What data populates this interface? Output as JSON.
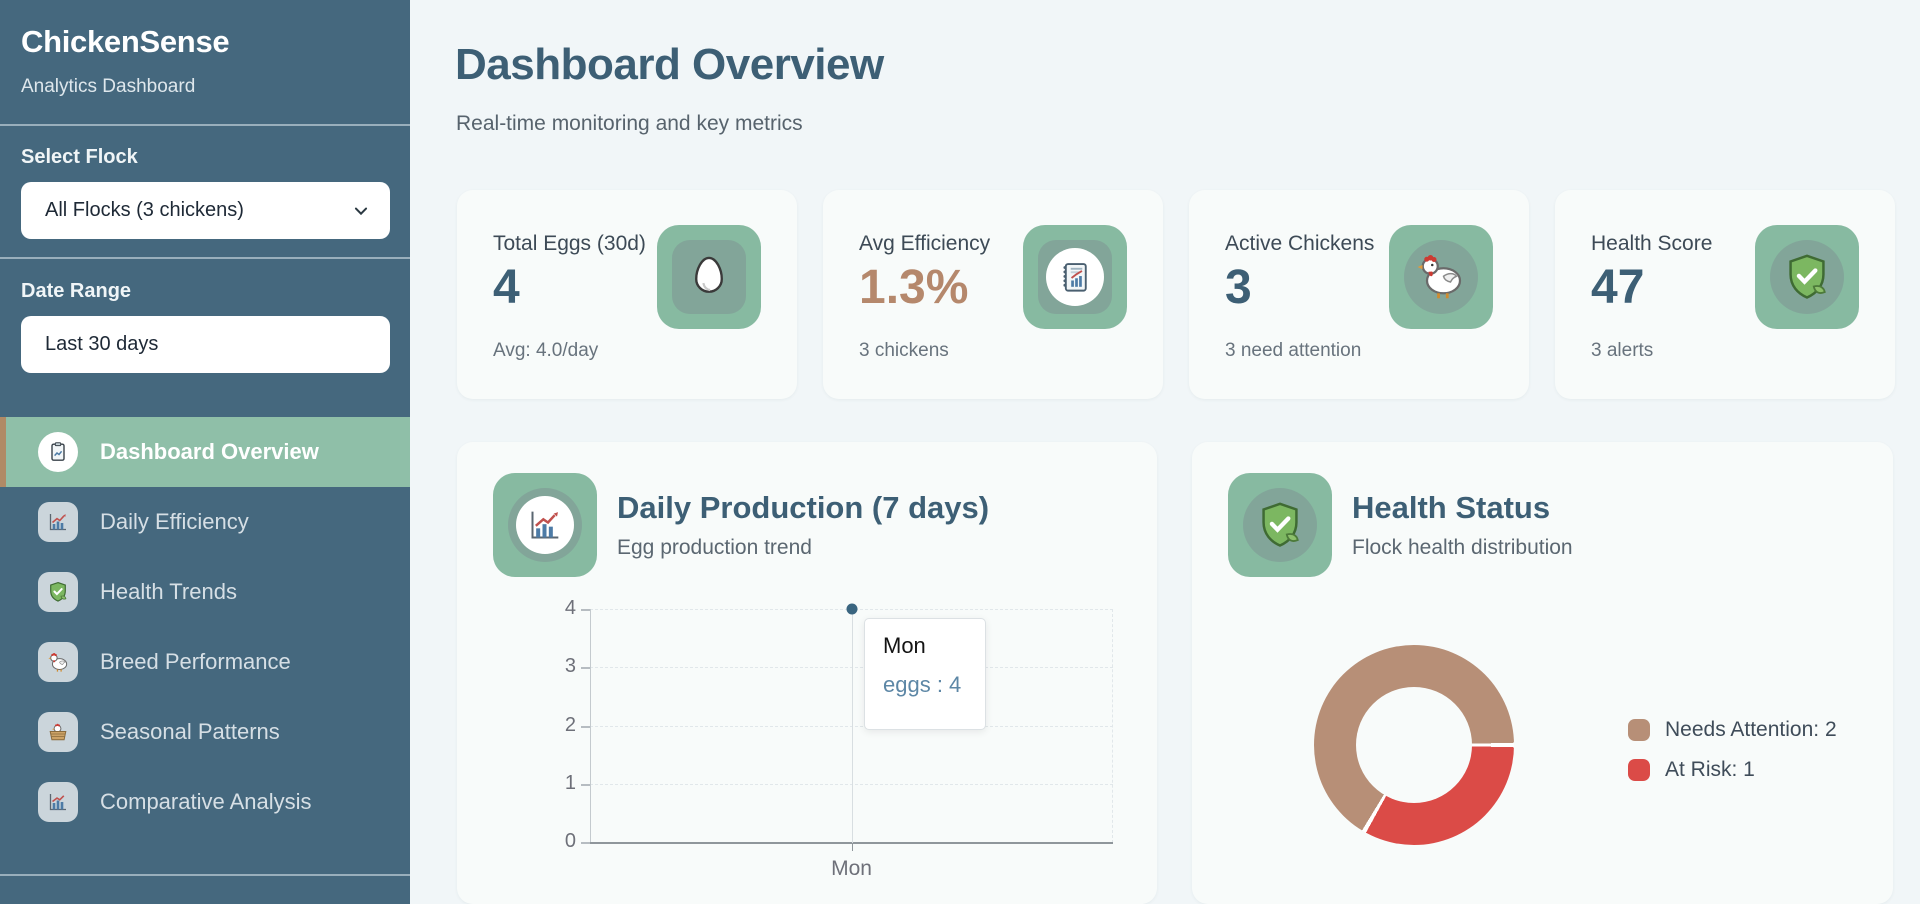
{
  "colors": {
    "sidebar_bg": "#45687E",
    "active_nav_green": "#8FBFA8",
    "active_nav_accent": "#B08A66",
    "icon_tile_green": "#87BAA1",
    "heading": "#3D5F75",
    "efficiency_value_tan": "#B5886C",
    "donut_tan": "#B78F77",
    "donut_red": "#DB4B47",
    "page_bg": "#F1F6F8",
    "card_bg": "#F8FBFA"
  },
  "sidebar": {
    "title": "ChickenSense",
    "subtitle": "Analytics Dashboard",
    "flock_label": "Select Flock",
    "flock_value": "All Flocks (3 chickens)",
    "date_label": "Date Range",
    "date_value": "Last 30 days",
    "nav": [
      {
        "label": "Dashboard Overview",
        "active": true
      },
      {
        "label": "Daily Efficiency",
        "active": false
      },
      {
        "label": "Health Trends",
        "active": false
      },
      {
        "label": "Breed Performance",
        "active": false
      },
      {
        "label": "Seasonal Patterns",
        "active": false
      },
      {
        "label": "Comparative Analysis",
        "active": false
      }
    ]
  },
  "header": {
    "title": "Dashboard Overview",
    "subtitle": "Real-time monitoring and key metrics"
  },
  "stats": [
    {
      "label": "Total Eggs (30d)",
      "value": "4",
      "caption": "Avg: 4.0/day",
      "icon": "egg-icon"
    },
    {
      "label": "Avg Efficiency",
      "value": "1.3%",
      "caption": "3 chickens",
      "icon": "ledger-chart-icon"
    },
    {
      "label": "Active Chickens",
      "value": "3",
      "caption": "3 need attention",
      "icon": "chicken-icon"
    },
    {
      "label": "Health Score",
      "value": "47",
      "caption": "3 alerts",
      "icon": "shield-leaf-icon"
    }
  ],
  "production_card": {
    "title": "Daily Production (7 days)",
    "subtitle": "Egg production trend",
    "tooltip": {
      "title": "Mon",
      "label": "eggs : 4"
    }
  },
  "health_card": {
    "title": "Health Status",
    "subtitle": "Flock health distribution",
    "legend": [
      {
        "label": "Needs Attention: 2",
        "color": "#B78F77"
      },
      {
        "label": "At Risk: 1",
        "color": "#DB4B47"
      }
    ]
  },
  "chart_data": [
    {
      "type": "line",
      "title": "Daily Production (7 days)",
      "x": [
        "Mon"
      ],
      "series": [
        {
          "name": "eggs",
          "values": [
            4
          ]
        }
      ],
      "ylim": [
        0,
        4
      ],
      "y_ticks": [
        0,
        1,
        2,
        3,
        4
      ],
      "y_tick_labels_top_to_bottom": [
        "4",
        "3",
        "2",
        "1",
        "0"
      ],
      "grid": true,
      "point_color": "#3A6580",
      "tooltip_shown": {
        "x": "Mon",
        "series": "eggs",
        "value": 4
      }
    },
    {
      "type": "pie",
      "donut": true,
      "title": "Health Status",
      "slices": [
        {
          "label": "Needs Attention",
          "value": 2,
          "color": "#B78F77"
        },
        {
          "label": "At Risk",
          "value": 1,
          "color": "#DB4B47"
        }
      ],
      "rotation_deg": 210,
      "legend_position": "right"
    }
  ]
}
